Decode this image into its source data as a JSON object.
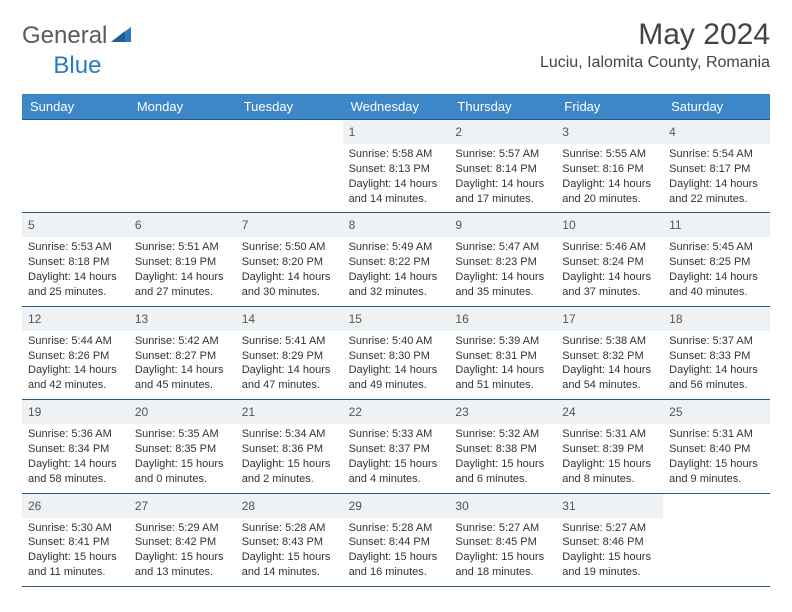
{
  "logo": {
    "text1": "General",
    "text2": "Blue"
  },
  "title": "May 2024",
  "location": "Luciu, Ialomita County, Romania",
  "colors": {
    "header_bg": "#3d87c9",
    "row_border": "#2a5a8a",
    "daynum_bg": "#eef2f5",
    "logo_gray": "#5a5a5a",
    "logo_blue": "#2a7abf"
  },
  "day_headers": [
    "Sunday",
    "Monday",
    "Tuesday",
    "Wednesday",
    "Thursday",
    "Friday",
    "Saturday"
  ],
  "weeks": [
    [
      null,
      null,
      null,
      {
        "n": "1",
        "sr": "5:58 AM",
        "ss": "8:13 PM",
        "dl": "14 hours and 14 minutes."
      },
      {
        "n": "2",
        "sr": "5:57 AM",
        "ss": "8:14 PM",
        "dl": "14 hours and 17 minutes."
      },
      {
        "n": "3",
        "sr": "5:55 AM",
        "ss": "8:16 PM",
        "dl": "14 hours and 20 minutes."
      },
      {
        "n": "4",
        "sr": "5:54 AM",
        "ss": "8:17 PM",
        "dl": "14 hours and 22 minutes."
      }
    ],
    [
      {
        "n": "5",
        "sr": "5:53 AM",
        "ss": "8:18 PM",
        "dl": "14 hours and 25 minutes."
      },
      {
        "n": "6",
        "sr": "5:51 AM",
        "ss": "8:19 PM",
        "dl": "14 hours and 27 minutes."
      },
      {
        "n": "7",
        "sr": "5:50 AM",
        "ss": "8:20 PM",
        "dl": "14 hours and 30 minutes."
      },
      {
        "n": "8",
        "sr": "5:49 AM",
        "ss": "8:22 PM",
        "dl": "14 hours and 32 minutes."
      },
      {
        "n": "9",
        "sr": "5:47 AM",
        "ss": "8:23 PM",
        "dl": "14 hours and 35 minutes."
      },
      {
        "n": "10",
        "sr": "5:46 AM",
        "ss": "8:24 PM",
        "dl": "14 hours and 37 minutes."
      },
      {
        "n": "11",
        "sr": "5:45 AM",
        "ss": "8:25 PM",
        "dl": "14 hours and 40 minutes."
      }
    ],
    [
      {
        "n": "12",
        "sr": "5:44 AM",
        "ss": "8:26 PM",
        "dl": "14 hours and 42 minutes."
      },
      {
        "n": "13",
        "sr": "5:42 AM",
        "ss": "8:27 PM",
        "dl": "14 hours and 45 minutes."
      },
      {
        "n": "14",
        "sr": "5:41 AM",
        "ss": "8:29 PM",
        "dl": "14 hours and 47 minutes."
      },
      {
        "n": "15",
        "sr": "5:40 AM",
        "ss": "8:30 PM",
        "dl": "14 hours and 49 minutes."
      },
      {
        "n": "16",
        "sr": "5:39 AM",
        "ss": "8:31 PM",
        "dl": "14 hours and 51 minutes."
      },
      {
        "n": "17",
        "sr": "5:38 AM",
        "ss": "8:32 PM",
        "dl": "14 hours and 54 minutes."
      },
      {
        "n": "18",
        "sr": "5:37 AM",
        "ss": "8:33 PM",
        "dl": "14 hours and 56 minutes."
      }
    ],
    [
      {
        "n": "19",
        "sr": "5:36 AM",
        "ss": "8:34 PM",
        "dl": "14 hours and 58 minutes."
      },
      {
        "n": "20",
        "sr": "5:35 AM",
        "ss": "8:35 PM",
        "dl": "15 hours and 0 minutes."
      },
      {
        "n": "21",
        "sr": "5:34 AM",
        "ss": "8:36 PM",
        "dl": "15 hours and 2 minutes."
      },
      {
        "n": "22",
        "sr": "5:33 AM",
        "ss": "8:37 PM",
        "dl": "15 hours and 4 minutes."
      },
      {
        "n": "23",
        "sr": "5:32 AM",
        "ss": "8:38 PM",
        "dl": "15 hours and 6 minutes."
      },
      {
        "n": "24",
        "sr": "5:31 AM",
        "ss": "8:39 PM",
        "dl": "15 hours and 8 minutes."
      },
      {
        "n": "25",
        "sr": "5:31 AM",
        "ss": "8:40 PM",
        "dl": "15 hours and 9 minutes."
      }
    ],
    [
      {
        "n": "26",
        "sr": "5:30 AM",
        "ss": "8:41 PM",
        "dl": "15 hours and 11 minutes."
      },
      {
        "n": "27",
        "sr": "5:29 AM",
        "ss": "8:42 PM",
        "dl": "15 hours and 13 minutes."
      },
      {
        "n": "28",
        "sr": "5:28 AM",
        "ss": "8:43 PM",
        "dl": "15 hours and 14 minutes."
      },
      {
        "n": "29",
        "sr": "5:28 AM",
        "ss": "8:44 PM",
        "dl": "15 hours and 16 minutes."
      },
      {
        "n": "30",
        "sr": "5:27 AM",
        "ss": "8:45 PM",
        "dl": "15 hours and 18 minutes."
      },
      {
        "n": "31",
        "sr": "5:27 AM",
        "ss": "8:46 PM",
        "dl": "15 hours and 19 minutes."
      },
      null
    ]
  ],
  "labels": {
    "sunrise": "Sunrise: ",
    "sunset": "Sunset: ",
    "daylight": "Daylight: "
  }
}
